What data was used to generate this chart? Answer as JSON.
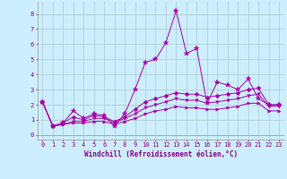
{
  "xlabel": "Windchill (Refroidissement éolien,°C)",
  "background_color": "#cceeff",
  "grid_color": "#aacccc",
  "line_color": "#aa00aa",
  "x_ticks": [
    0,
    1,
    2,
    3,
    4,
    5,
    6,
    7,
    8,
    9,
    10,
    11,
    12,
    13,
    14,
    15,
    16,
    17,
    18,
    19,
    20,
    21,
    22,
    23
  ],
  "y_ticks": [
    0,
    1,
    2,
    3,
    4,
    5,
    6,
    7,
    8
  ],
  "ylim": [
    -0.3,
    8.8
  ],
  "xlim": [
    -0.5,
    23.5
  ],
  "series": [
    [
      2.2,
      0.6,
      0.8,
      1.6,
      1.1,
      1.4,
      1.3,
      0.6,
      1.4,
      3.0,
      4.8,
      5.0,
      6.1,
      8.2,
      5.4,
      5.7,
      2.1,
      3.5,
      3.3,
      3.0,
      3.7,
      2.4,
      2.0,
      2.0
    ],
    [
      2.2,
      0.6,
      0.8,
      1.2,
      1.0,
      1.3,
      1.2,
      0.9,
      1.2,
      1.7,
      2.2,
      2.4,
      2.6,
      2.8,
      2.7,
      2.7,
      2.5,
      2.6,
      2.7,
      2.8,
      3.0,
      3.1,
      2.0,
      2.0
    ],
    [
      2.2,
      0.6,
      0.7,
      0.9,
      0.9,
      1.1,
      1.1,
      0.8,
      1.1,
      1.4,
      1.8,
      2.0,
      2.2,
      2.4,
      2.3,
      2.3,
      2.1,
      2.2,
      2.3,
      2.4,
      2.6,
      2.7,
      1.9,
      1.9
    ],
    [
      2.2,
      0.6,
      0.7,
      0.8,
      0.8,
      0.9,
      0.9,
      0.7,
      0.9,
      1.1,
      1.4,
      1.6,
      1.7,
      1.9,
      1.8,
      1.8,
      1.7,
      1.7,
      1.8,
      1.9,
      2.1,
      2.1,
      1.6,
      1.6
    ]
  ],
  "marker_styles": [
    "*",
    "D",
    "v",
    ">"
  ],
  "marker_sizes": [
    4,
    2.5,
    2.5,
    2.5
  ],
  "linewidth": 0.7,
  "tick_fontsize": 5,
  "xlabel_fontsize": 5.5,
  "tick_color": "#880088",
  "xlabel_color": "#880088"
}
